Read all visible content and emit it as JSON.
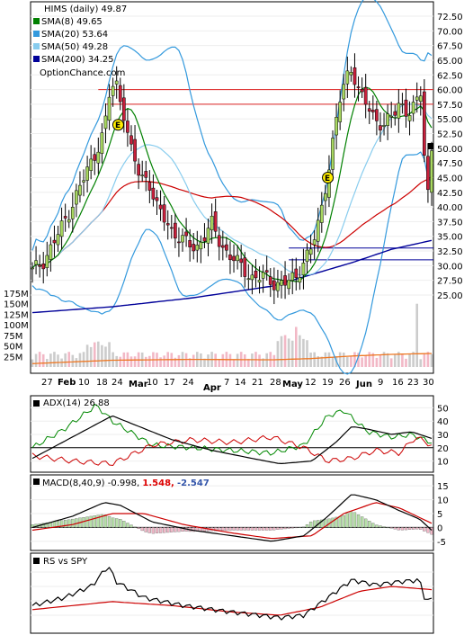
{
  "chart_data": [
    {
      "type": "candlestick",
      "title": "HIMS (daily) 49.87",
      "watermark": "OptionChance.com",
      "legend": {
        "placement": "top-left",
        "entries": [
          {
            "label": "SMA(8) 49.65",
            "color": "#008000"
          },
          {
            "label": "SMA(20) 53.64",
            "color": "#3399dd"
          },
          {
            "label": "SMA(50) 49.28",
            "color": "#88ccee"
          },
          {
            "label": "SMA(200) 34.25",
            "color": "#000099"
          }
        ]
      },
      "x_day_labels": [
        "27",
        "10",
        "18",
        "24",
        "10",
        "17",
        "24",
        "7",
        "14",
        "21",
        "28",
        "12",
        "19",
        "26",
        "9",
        "16",
        "23",
        "30"
      ],
      "x_month_labels": [
        "Feb",
        "Mar",
        "Apr",
        "May",
        "Jun"
      ],
      "price_ticks": [
        "72.50",
        "70.00",
        "67.50",
        "65.00",
        "62.50",
        "60.00",
        "57.50",
        "55.00",
        "52.50",
        "50.00",
        "47.50",
        "45.00",
        "42.50",
        "40.00",
        "37.50",
        "35.00",
        "32.50",
        "30.00",
        "27.50",
        "25.00"
      ],
      "ylim": [
        25,
        72.5
      ],
      "volume_ticks": [
        "175M",
        "150M",
        "125M",
        "100M",
        "75M",
        "50M",
        "25M"
      ],
      "volume_ylim": [
        0,
        175
      ],
      "last_close": 49.87,
      "earnings_markers": [
        "E",
        "E"
      ],
      "resistance_lines": [
        60.0,
        57.5
      ],
      "support_lines": [
        33.0,
        31.0
      ]
    },
    {
      "type": "line",
      "title": "ADX(14) 26.88",
      "yticks": [
        "50",
        "40",
        "30",
        "20",
        "10"
      ],
      "ylim": [
        5,
        55
      ],
      "reference_line": 20
    },
    {
      "type": "line",
      "title_prefix": "MACD(8,40,9)",
      "macd_value": "-0.998,",
      "signal_value": "1.548,",
      "hist_value": "-2.547",
      "yticks": [
        "15",
        "10",
        "5",
        "0",
        "-5"
      ],
      "ylim": [
        -7,
        17
      ],
      "reference_line": 0
    },
    {
      "type": "line",
      "title": "RS vs SPY"
    }
  ]
}
